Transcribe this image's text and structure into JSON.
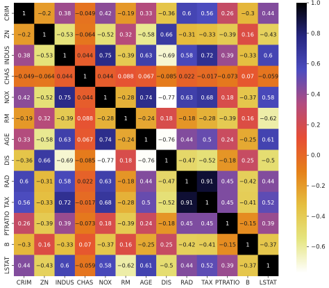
{
  "chart_data": {
    "type": "heatmap",
    "title": "",
    "labels": [
      "CRIM",
      "ZN",
      "INDUS",
      "CHAS",
      "NOX",
      "RM",
      "AGE",
      "DIS",
      "RAD",
      "TAX",
      "PTRATIO",
      "B",
      "LSTAT"
    ],
    "matrix": [
      [
        1,
        -0.2,
        0.38,
        -0.049,
        0.42,
        -0.19,
        0.33,
        -0.36,
        0.6,
        0.56,
        0.26,
        -0.3,
        0.44
      ],
      [
        -0.2,
        1,
        -0.53,
        -0.064,
        -0.52,
        0.32,
        -0.58,
        0.66,
        -0.31,
        -0.33,
        -0.39,
        0.16,
        -0.43
      ],
      [
        0.38,
        -0.53,
        1,
        0.044,
        0.75,
        -0.39,
        0.63,
        -0.69,
        0.58,
        0.72,
        0.39,
        -0.33,
        0.6
      ],
      [
        -0.049,
        -0.064,
        0.044,
        1,
        0.044,
        0.088,
        0.067,
        -0.085,
        0.022,
        -0.017,
        -0.073,
        0.07,
        -0.059
      ],
      [
        0.42,
        -0.52,
        0.75,
        0.044,
        1,
        -0.28,
        0.74,
        -0.77,
        0.63,
        0.68,
        0.18,
        -0.37,
        0.58
      ],
      [
        -0.19,
        0.32,
        -0.39,
        0.088,
        -0.28,
        1,
        -0.24,
        0.18,
        -0.18,
        -0.28,
        -0.39,
        0.16,
        -0.62
      ],
      [
        0.33,
        -0.58,
        0.63,
        0.067,
        0.74,
        -0.24,
        1,
        -0.76,
        0.44,
        0.5,
        0.24,
        -0.25,
        0.61
      ],
      [
        -0.36,
        0.66,
        -0.69,
        -0.085,
        -0.77,
        0.18,
        -0.76,
        1,
        -0.47,
        -0.52,
        -0.18,
        0.25,
        -0.5
      ],
      [
        0.6,
        -0.31,
        0.58,
        0.022,
        0.63,
        -0.18,
        0.44,
        -0.47,
        1,
        0.91,
        0.45,
        -0.42,
        0.44
      ],
      [
        0.56,
        -0.33,
        0.72,
        -0.017,
        0.68,
        -0.28,
        0.5,
        -0.52,
        0.91,
        1,
        0.45,
        -0.41,
        0.52
      ],
      [
        0.26,
        -0.39,
        0.39,
        -0.073,
        0.18,
        -0.39,
        0.24,
        -0.18,
        0.45,
        0.45,
        1,
        -0.15,
        0.39
      ],
      [
        -0.3,
        0.16,
        -0.33,
        0.07,
        -0.37,
        0.16,
        -0.25,
        0.25,
        -0.42,
        -0.41,
        -0.15,
        1,
        -0.37
      ],
      [
        0.44,
        -0.43,
        0.6,
        -0.059,
        0.58,
        -0.62,
        0.61,
        -0.5,
        0.44,
        0.52,
        0.39,
        -0.37,
        1
      ]
    ],
    "colorbar": {
      "colormap": "CMRmap_r",
      "min": -0.77,
      "max": 1,
      "ticks": [
        1.0,
        0.8,
        0.6,
        0.4,
        0.2,
        0.0,
        -0.2,
        -0.4,
        -0.6
      ],
      "tick_labels": [
        "1.0",
        "0.8",
        "0.6",
        "0.4",
        "0.2",
        "0.0",
        "−0.2",
        "−0.4",
        "−0.6"
      ]
    },
    "xlabel": "",
    "ylabel": "",
    "grid": false
  }
}
